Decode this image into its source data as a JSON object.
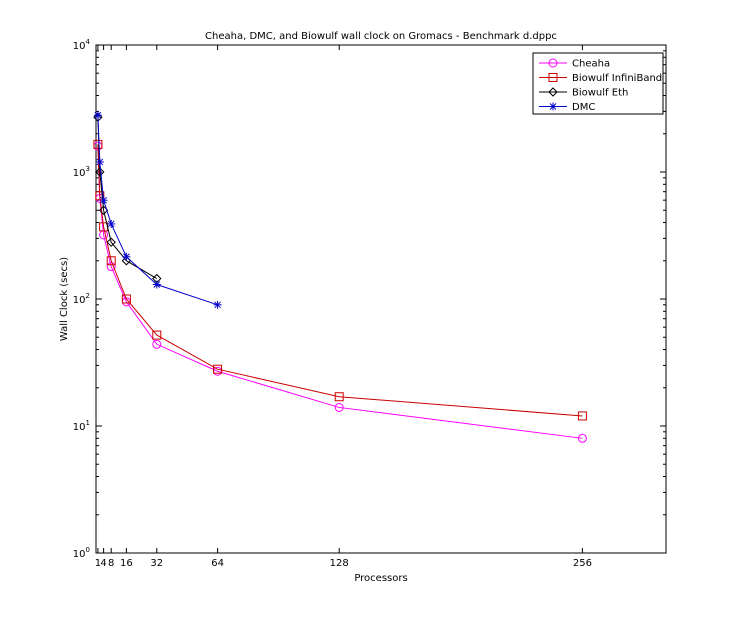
{
  "chart_data": {
    "type": "line",
    "title": "Cheaha, DMC, and Biowulf wall clock on Gromacs - Benchmark d.dppc",
    "xlabel": "Processors",
    "ylabel": "Wall Clock (secs)",
    "xlim": [
      0,
      300
    ],
    "ylim": [
      1,
      10000
    ],
    "yscale": "log",
    "grid": false,
    "legend_position": "top-right",
    "x_ticks": [
      1,
      4,
      8,
      16,
      32,
      64,
      128,
      256
    ],
    "y_ticks": [
      {
        "value": 1,
        "base": "10",
        "exp": "0"
      },
      {
        "value": 10,
        "base": "10",
        "exp": "1"
      },
      {
        "value": 100,
        "base": "10",
        "exp": "2"
      },
      {
        "value": 1000,
        "base": "10",
        "exp": "3"
      },
      {
        "value": 10000,
        "base": "10",
        "exp": "4"
      }
    ],
    "series": [
      {
        "name": "Cheaha",
        "color": "#ff00ff",
        "marker": "circle",
        "x": [
          1,
          2,
          4,
          8,
          16,
          32,
          64,
          128,
          256
        ],
        "y": [
          1600,
          620,
          320,
          180,
          95,
          44,
          27,
          14,
          8
        ]
      },
      {
        "name": "Biowulf InfiniBand",
        "color": "#cc0000",
        "marker": "square",
        "x": [
          1,
          2,
          4,
          8,
          16,
          32,
          64,
          128,
          256
        ],
        "y": [
          1650,
          650,
          370,
          200,
          100,
          52,
          28,
          17,
          12
        ]
      },
      {
        "name": "Biowulf Eth",
        "color": "#000000",
        "marker": "diamond",
        "x": [
          1,
          2,
          4,
          8,
          16,
          32
        ],
        "y": [
          2700,
          1000,
          500,
          280,
          200,
          145
        ]
      },
      {
        "name": "DMC",
        "color": "#0000cc",
        "marker": "asterisk",
        "x": [
          1,
          2,
          4,
          8,
          16,
          32,
          64
        ],
        "y": [
          2800,
          1200,
          600,
          390,
          215,
          130,
          90
        ]
      }
    ]
  }
}
